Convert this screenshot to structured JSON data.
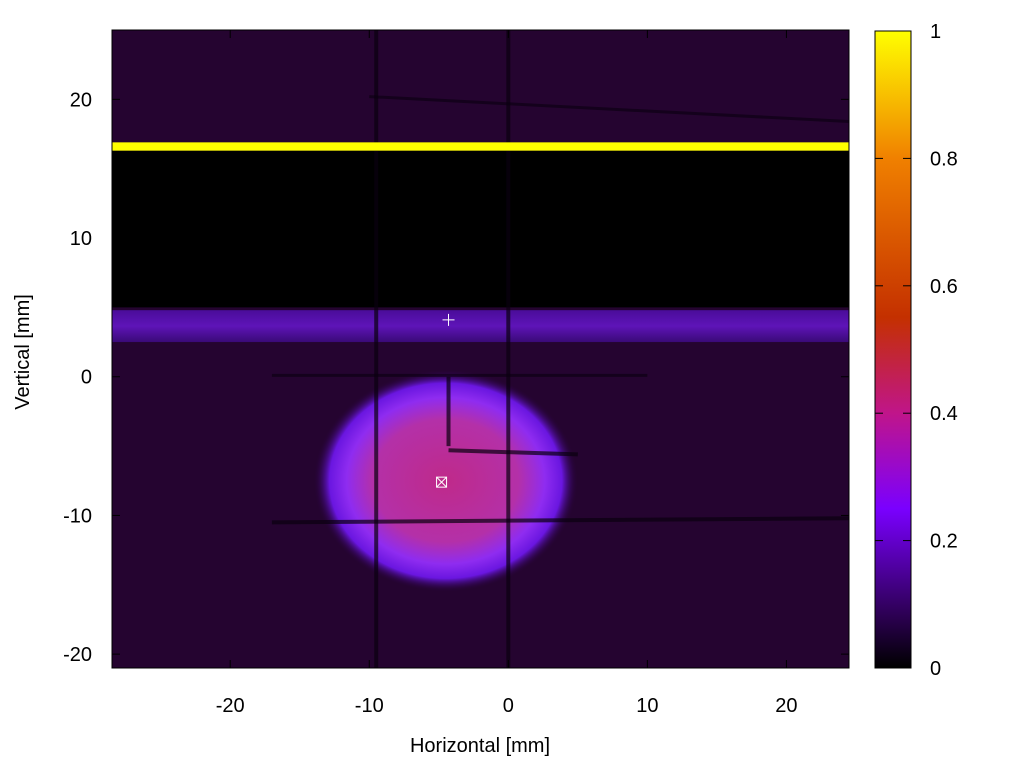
{
  "chart_data": {
    "type": "heatmap",
    "title": "",
    "xlabel": "Horizontal [mm]",
    "ylabel": "Vertical [mm]",
    "xlim": [
      -28.5,
      24.5
    ],
    "ylim": [
      -21,
      25
    ],
    "x_ticks": [
      -20,
      -10,
      0,
      10,
      20
    ],
    "y_ticks": [
      -20,
      -10,
      0,
      10,
      20
    ],
    "colorbar": {
      "range": [
        0,
        1
      ],
      "ticks": [
        0,
        0.2,
        0.4,
        0.6,
        0.8,
        1
      ],
      "tick_labels": [
        "0",
        "0.2",
        "0.4",
        "0.6",
        "0.8",
        "1"
      ],
      "colors": [
        "#000000",
        "#2b0050",
        "#7a00ff",
        "#c0158a",
        "#c43000",
        "#f08000",
        "#ffff00"
      ]
    },
    "features": [
      {
        "name": "bright-line",
        "shape": "band",
        "x": [
          -28.5,
          24.5
        ],
        "y": [
          16.3,
          16.9
        ],
        "value": 1.0
      },
      {
        "name": "dark-region",
        "shape": "band",
        "x": [
          -28.5,
          24.5
        ],
        "y": [
          5.0,
          16.3
        ],
        "value": 0.0
      },
      {
        "name": "mid-band",
        "shape": "band",
        "x": [
          -28.5,
          24.5
        ],
        "y": [
          2.5,
          4.8
        ],
        "value": 0.18
      },
      {
        "name": "beam-spot",
        "shape": "ellipse",
        "cx": -4.5,
        "cy": -7.5,
        "rx": 9.5,
        "ry": 8.0,
        "value": 0.42
      }
    ],
    "markers": [
      {
        "name": "plus-marker",
        "x": -4.3,
        "y": 4.1,
        "symbol": "+"
      },
      {
        "name": "box-x-marker",
        "x": -4.8,
        "y": -7.6,
        "symbol": "box-x"
      }
    ]
  }
}
